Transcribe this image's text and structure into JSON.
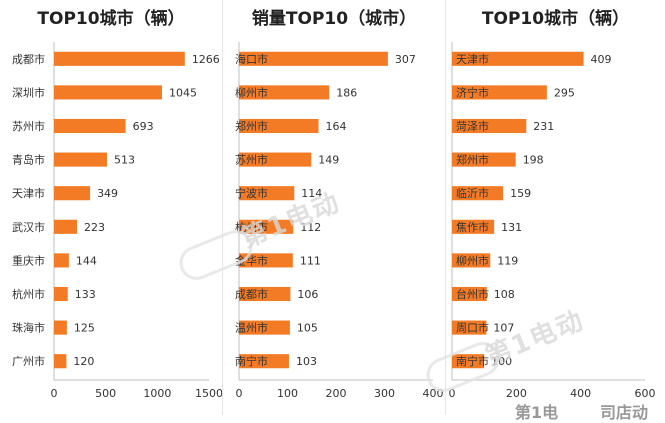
{
  "colors": {
    "bar": "#f47b25",
    "axis": "#bfbfbf"
  },
  "watermark": {
    "text": "第1电动"
  },
  "footer": {
    "left": "第1电",
    "right": "司店动"
  },
  "chart_data": [
    {
      "type": "bar",
      "title": "TOP10城市（辆）",
      "categories": [
        "成都市",
        "深圳市",
        "苏州市",
        "青岛市",
        "天津市",
        "武汉市",
        "重庆市",
        "杭州市",
        "珠海市",
        "广州市"
      ],
      "values": [
        1266,
        1045,
        693,
        513,
        349,
        223,
        144,
        133,
        125,
        120
      ],
      "xlim": [
        0,
        1500
      ],
      "xticks": [
        0,
        500,
        1000,
        1500
      ]
    },
    {
      "type": "bar",
      "title": "销量TOP10（城市）",
      "categories": [
        "海口市",
        "柳州市",
        "郑州市",
        "苏州市",
        "宁波市",
        "杭州市",
        "金华市",
        "成都市",
        "温州市",
        "南宁市"
      ],
      "values": [
        307,
        186,
        164,
        149,
        114,
        112,
        111,
        106,
        105,
        103
      ],
      "xlim": [
        0,
        400
      ],
      "xticks": [
        0,
        100,
        200,
        300,
        400
      ]
    },
    {
      "type": "bar",
      "title": "TOP10城市（辆）",
      "categories": [
        "天津市",
        "济宁市",
        "菏泽市",
        "郑州市",
        "临沂市",
        "焦作市",
        "柳州市",
        "台州市",
        "周口市",
        "南宁市"
      ],
      "values": [
        409,
        295,
        231,
        198,
        159,
        131,
        119,
        108,
        107,
        100
      ],
      "xlim": [
        0,
        600
      ],
      "xticks": [
        0,
        200,
        400,
        600
      ]
    }
  ]
}
